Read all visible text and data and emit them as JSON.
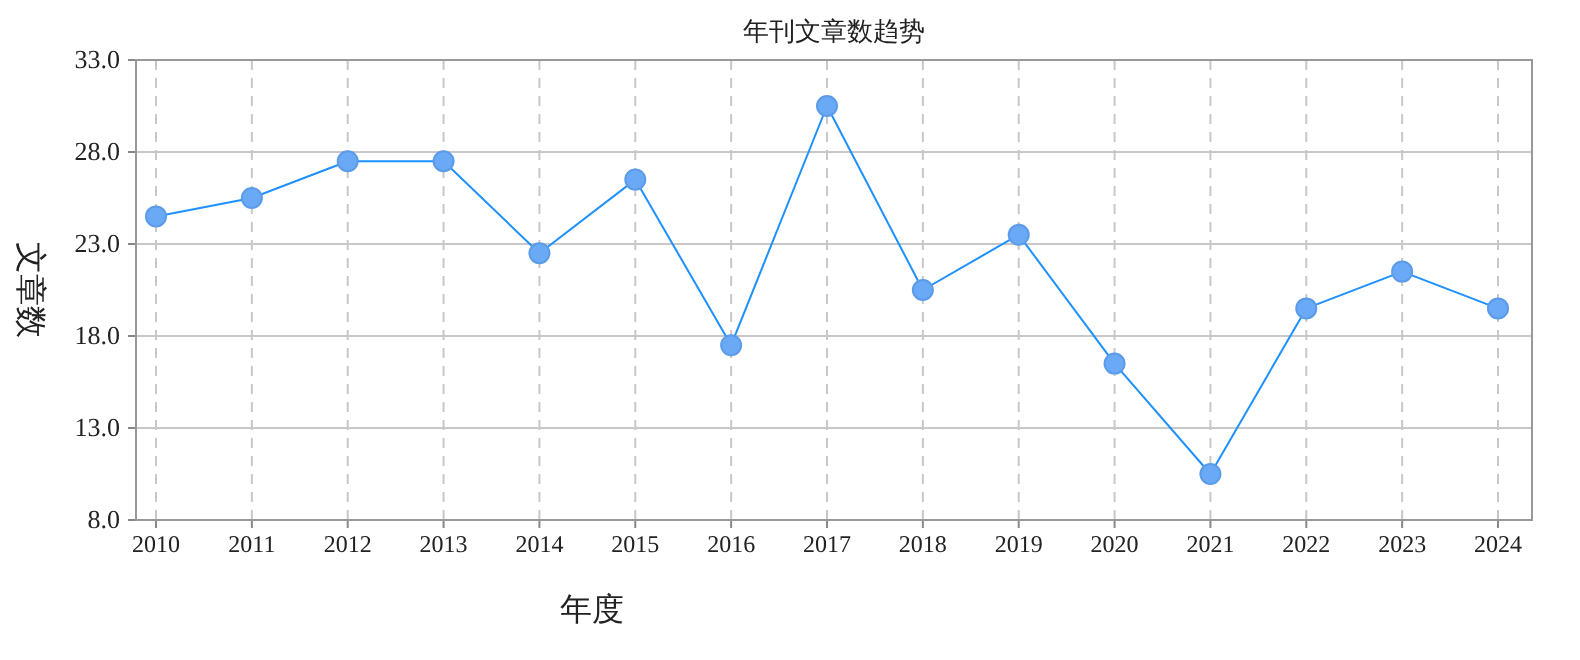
{
  "chart_data": {
    "type": "line",
    "title": "年刊文章数趋势",
    "xlabel": "年度",
    "ylabel": "文章数",
    "categories": [
      "2010",
      "2011",
      "2012",
      "2013",
      "2014",
      "2015",
      "2016",
      "2017",
      "2018",
      "2019",
      "2020",
      "2021",
      "2022",
      "2023",
      "2024"
    ],
    "series": [
      {
        "color": "#1e90ff",
        "values": [
          24.5,
          25.5,
          27.5,
          27.5,
          22.5,
          26.5,
          17.5,
          30.5,
          20.5,
          23.5,
          16.5,
          10.5,
          19.5,
          21.5,
          19.5
        ]
      }
    ],
    "ylim": [
      8,
      33
    ],
    "yticks": [
      {
        "value": 8,
        "label": "8.0"
      },
      {
        "value": 13,
        "label": "13.0"
      },
      {
        "value": 18,
        "label": "18.0"
      },
      {
        "value": 23,
        "label": "23.0"
      },
      {
        "value": 28,
        "label": "28.0"
      },
      {
        "value": 33,
        "label": "33.0"
      }
    ],
    "grid": true,
    "marker": "circle",
    "line_style": "solid"
  }
}
